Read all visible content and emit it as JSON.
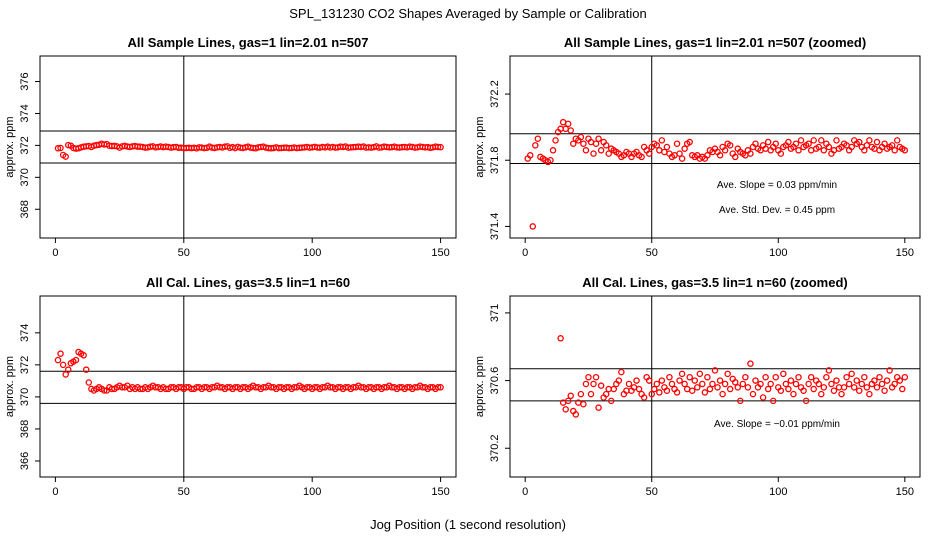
{
  "figure": {
    "title": "SPL_131230  CO2 Shapes Averaged by Sample or Calibration",
    "xlabel": "Jog Position (1 second resolution)"
  },
  "chart_data": [
    {
      "type": "scatter",
      "title": "All Sample Lines, gas=1 lin=2.01 n=507",
      "xlabel": "",
      "ylabel": "approx. ppm",
      "xlim": [
        -6,
        156
      ],
      "ylim": [
        366.2,
        377.6
      ],
      "xticks": [
        0,
        50,
        100,
        150
      ],
      "yticks": [
        368,
        370,
        372,
        374,
        376
      ],
      "hlines": [
        372.9,
        370.9
      ],
      "vline": 50,
      "point_color": "#ff0000",
      "annotations": [],
      "x": [
        1,
        2,
        3,
        4,
        5,
        6,
        7,
        8,
        9,
        10,
        11,
        12,
        13,
        14,
        15,
        16,
        17,
        18,
        19,
        20,
        21,
        22,
        23,
        24,
        25,
        26,
        27,
        28,
        29,
        30,
        31,
        32,
        33,
        34,
        35,
        36,
        37,
        38,
        39,
        40,
        41,
        42,
        43,
        44,
        45,
        46,
        47,
        48,
        49,
        50,
        51,
        52,
        53,
        54,
        55,
        56,
        57,
        58,
        59,
        60,
        61,
        62,
        63,
        64,
        65,
        66,
        67,
        68,
        69,
        70,
        71,
        72,
        73,
        74,
        75,
        76,
        77,
        78,
        79,
        80,
        81,
        82,
        83,
        84,
        85,
        86,
        87,
        88,
        89,
        90,
        91,
        92,
        93,
        94,
        95,
        96,
        97,
        98,
        99,
        100,
        101,
        102,
        103,
        104,
        105,
        106,
        107,
        108,
        109,
        110,
        111,
        112,
        113,
        114,
        115,
        116,
        117,
        118,
        119,
        120,
        121,
        122,
        123,
        124,
        125,
        126,
        127,
        128,
        129,
        130,
        131,
        132,
        133,
        134,
        135,
        136,
        137,
        138,
        139,
        140,
        141,
        142,
        143,
        144,
        145,
        146,
        147,
        148,
        149,
        150
      ],
      "y": [
        371.82,
        371.84,
        371.4,
        371.3,
        372.02,
        371.98,
        371.84,
        371.8,
        371.82,
        371.88,
        371.92,
        371.94,
        371.96,
        371.9,
        371.98,
        372.02,
        372.04,
        372.1,
        372.06,
        372.08,
        371.98,
        371.96,
        371.97,
        371.94,
        371.86,
        371.94,
        371.97,
        371.93,
        371.9,
        371.94,
        371.96,
        371.92,
        371.92,
        371.9,
        371.86,
        371.88,
        371.92,
        371.94,
        371.88,
        371.9,
        371.93,
        371.89,
        371.92,
        371.9,
        371.86,
        371.89,
        371.9,
        371.85,
        371.86,
        371.83,
        371.84,
        371.85,
        371.83,
        371.85,
        371.82,
        371.88,
        371.86,
        371.83,
        371.85,
        371.92,
        371.86,
        371.84,
        371.88,
        371.9,
        371.87,
        371.92,
        371.94,
        371.85,
        371.89,
        371.83,
        371.91,
        371.86,
        371.84,
        371.88,
        371.92,
        371.86,
        371.84,
        371.82,
        371.88,
        371.9,
        371.92,
        371.86,
        371.83,
        371.82,
        371.84,
        371.88,
        371.83,
        371.84,
        371.85,
        371.86,
        371.83,
        371.84,
        371.87,
        371.83,
        371.85,
        371.86,
        371.88,
        371.9,
        371.86,
        371.88,
        371.91,
        371.87,
        371.86,
        371.9,
        371.88,
        371.92,
        371.87,
        371.9,
        371.86,
        371.88,
        371.92,
        371.9,
        371.93,
        371.86,
        371.88,
        371.89,
        371.9,
        371.92,
        371.9,
        371.93,
        371.86,
        371.88,
        371.86,
        371.89,
        371.94,
        371.86,
        371.88,
        371.92,
        371.9,
        371.88,
        371.89,
        371.92,
        371.88,
        371.87,
        371.89,
        371.9,
        371.88,
        371.92,
        371.9,
        371.86,
        371.88,
        371.92,
        371.9,
        371.88,
        371.89,
        371.85,
        371.88,
        371.92,
        371.9,
        371.89
      ]
    },
    {
      "type": "scatter",
      "title": "All Sample Lines, gas=1 lin=2.01 n=507 (zoomed)",
      "xlabel": "",
      "ylabel": "approx. ppm",
      "xlim": [
        -6,
        156
      ],
      "ylim": [
        371.33,
        372.43
      ],
      "xticks": [
        0,
        50,
        100,
        150
      ],
      "yticks": [
        371.4,
        371.8,
        372.2
      ],
      "hlines": [
        371.96,
        371.78
      ],
      "vline": 50,
      "point_color": "#ff0000",
      "annotations": [
        "Ave. Slope =  0.03  ppm/min",
        "Ave. Std. Dev. =  0.45  ppm"
      ],
      "x": [
        1,
        2,
        3,
        4,
        5,
        6,
        7,
        8,
        9,
        10,
        11,
        12,
        13,
        14,
        15,
        16,
        17,
        18,
        19,
        20,
        21,
        22,
        23,
        24,
        25,
        26,
        27,
        28,
        29,
        30,
        31,
        32,
        33,
        34,
        35,
        36,
        37,
        38,
        39,
        40,
        41,
        42,
        43,
        44,
        45,
        46,
        47,
        48,
        49,
        50,
        51,
        52,
        53,
        54,
        55,
        56,
        57,
        58,
        59,
        60,
        61,
        62,
        63,
        64,
        65,
        66,
        67,
        68,
        69,
        70,
        71,
        72,
        73,
        74,
        75,
        76,
        77,
        78,
        79,
        80,
        81,
        82,
        83,
        84,
        85,
        86,
        87,
        88,
        89,
        90,
        91,
        92,
        93,
        94,
        95,
        96,
        97,
        98,
        99,
        100,
        101,
        102,
        103,
        104,
        105,
        106,
        107,
        108,
        109,
        110,
        111,
        112,
        113,
        114,
        115,
        116,
        117,
        118,
        119,
        120,
        121,
        122,
        123,
        124,
        125,
        126,
        127,
        128,
        129,
        130,
        131,
        132,
        133,
        134,
        135,
        136,
        137,
        138,
        139,
        140,
        141,
        142,
        143,
        144,
        145,
        146,
        147,
        148,
        149,
        150
      ],
      "y": [
        371.81,
        371.83,
        371.4,
        371.89,
        371.93,
        371.82,
        371.81,
        371.8,
        371.79,
        371.8,
        371.86,
        371.92,
        371.97,
        371.99,
        372.03,
        371.99,
        372.02,
        371.98,
        371.9,
        371.93,
        371.92,
        371.94,
        371.9,
        371.86,
        371.93,
        371.91,
        371.84,
        371.9,
        371.93,
        371.86,
        371.91,
        371.89,
        371.84,
        371.87,
        371.86,
        371.85,
        371.84,
        371.82,
        371.83,
        371.85,
        371.84,
        371.82,
        371.84,
        371.85,
        371.83,
        371.82,
        371.88,
        371.86,
        371.84,
        371.88,
        371.9,
        371.89,
        371.86,
        371.92,
        371.85,
        371.88,
        371.84,
        371.82,
        371.83,
        371.9,
        371.84,
        371.81,
        371.87,
        371.9,
        371.91,
        371.83,
        371.82,
        371.83,
        371.81,
        371.82,
        371.81,
        371.83,
        371.86,
        371.85,
        371.87,
        371.85,
        371.83,
        371.88,
        371.86,
        371.9,
        371.89,
        371.84,
        371.82,
        371.87,
        371.85,
        371.84,
        371.83,
        371.86,
        371.84,
        371.88,
        371.9,
        371.87,
        371.86,
        371.89,
        371.87,
        371.91,
        371.86,
        371.88,
        371.9,
        371.86,
        371.84,
        371.88,
        371.89,
        371.91,
        371.87,
        371.88,
        371.9,
        371.86,
        371.92,
        371.88,
        371.89,
        371.9,
        371.86,
        371.92,
        371.87,
        371.88,
        371.92,
        371.86,
        371.9,
        371.88,
        371.84,
        371.86,
        371.92,
        371.87,
        371.88,
        371.9,
        371.89,
        371.86,
        371.88,
        371.92,
        371.9,
        371.91,
        371.88,
        371.86,
        371.89,
        371.92,
        371.88,
        371.87,
        371.91,
        371.86,
        371.88,
        371.9,
        371.87,
        371.88,
        371.89,
        371.86,
        371.92,
        371.88,
        371.87,
        371.86
      ]
    },
    {
      "type": "scatter",
      "title": "All Cal. Lines, gas=3.5 lin=1 n=60",
      "xlabel": "",
      "ylabel": "approx. ppm",
      "xlim": [
        -6,
        156
      ],
      "ylim": [
        365.0,
        376.3
      ],
      "xticks": [
        0,
        50,
        100,
        150
      ],
      "yticks": [
        366,
        368,
        370,
        372,
        374
      ],
      "hlines": [
        371.6,
        369.6
      ],
      "vline": 50,
      "point_color": "#ff0000",
      "annotations": [],
      "x": [
        1,
        2,
        3,
        4,
        5,
        6,
        7,
        8,
        9,
        10,
        11,
        12,
        13,
        14,
        15,
        16,
        17,
        18,
        19,
        20,
        21,
        22,
        23,
        24,
        25,
        26,
        27,
        28,
        29,
        30,
        31,
        32,
        33,
        34,
        35,
        36,
        37,
        38,
        39,
        40,
        41,
        42,
        43,
        44,
        45,
        46,
        47,
        48,
        49,
        50,
        51,
        52,
        53,
        54,
        55,
        56,
        57,
        58,
        59,
        60,
        61,
        62,
        63,
        64,
        65,
        66,
        67,
        68,
        69,
        70,
        71,
        72,
        73,
        74,
        75,
        76,
        77,
        78,
        79,
        80,
        81,
        82,
        83,
        84,
        85,
        86,
        87,
        88,
        89,
        90,
        91,
        92,
        93,
        94,
        95,
        96,
        97,
        98,
        99,
        100,
        101,
        102,
        103,
        104,
        105,
        106,
        107,
        108,
        109,
        110,
        111,
        112,
        113,
        114,
        115,
        116,
        117,
        118,
        119,
        120,
        121,
        122,
        123,
        124,
        125,
        126,
        127,
        128,
        129,
        130,
        131,
        132,
        133,
        134,
        135,
        136,
        137,
        138,
        139,
        140,
        141,
        142,
        143,
        144,
        145,
        146,
        147,
        148,
        149,
        150
      ],
      "y": [
        372.3,
        372.7,
        372.0,
        371.4,
        371.7,
        372.1,
        372.2,
        372.3,
        372.8,
        372.7,
        372.6,
        371.7,
        370.9,
        370.5,
        370.4,
        370.5,
        370.6,
        370.5,
        370.4,
        370.4,
        370.6,
        370.5,
        370.5,
        370.6,
        370.7,
        370.6,
        370.6,
        370.7,
        370.5,
        370.6,
        370.5,
        370.6,
        370.5,
        370.5,
        370.6,
        370.5,
        370.6,
        370.7,
        370.6,
        370.6,
        370.5,
        370.6,
        370.5,
        370.5,
        370.6,
        370.6,
        370.5,
        370.6,
        370.6,
        370.5,
        370.6,
        370.6,
        370.5,
        370.5,
        370.6,
        370.6,
        370.5,
        370.6,
        370.6,
        370.5,
        370.6,
        370.6,
        370.7,
        370.6,
        370.6,
        370.5,
        370.6,
        370.6,
        370.5,
        370.6,
        370.6,
        370.5,
        370.6,
        370.6,
        370.5,
        370.6,
        370.7,
        370.6,
        370.6,
        370.5,
        370.6,
        370.6,
        370.7,
        370.6,
        370.6,
        370.5,
        370.6,
        370.6,
        370.5,
        370.6,
        370.6,
        370.5,
        370.6,
        370.6,
        370.7,
        370.6,
        370.5,
        370.6,
        370.6,
        370.5,
        370.6,
        370.6,
        370.5,
        370.6,
        370.6,
        370.7,
        370.6,
        370.6,
        370.5,
        370.6,
        370.6,
        370.5,
        370.6,
        370.6,
        370.5,
        370.6,
        370.6,
        370.7,
        370.6,
        370.6,
        370.5,
        370.6,
        370.6,
        370.5,
        370.6,
        370.6,
        370.5,
        370.6,
        370.6,
        370.7,
        370.6,
        370.6,
        370.5,
        370.6,
        370.6,
        370.5,
        370.6,
        370.6,
        370.5,
        370.6,
        370.6,
        370.7,
        370.6,
        370.6,
        370.5,
        370.6,
        370.6,
        370.5,
        370.6,
        370.6
      ]
    },
    {
      "type": "scatter",
      "title": "All Cal. Lines, gas=3.5 lin=1 n=60 (zoomed)",
      "xlabel": "",
      "ylabel": "approx. ppm",
      "xlim": [
        -6,
        156
      ],
      "ylim": [
        370.03,
        371.1
      ],
      "xticks": [
        0,
        50,
        100,
        150
      ],
      "yticks": [
        370.2,
        370.6,
        371.0
      ],
      "hlines": [
        370.67,
        370.48
      ],
      "vline": 50,
      "point_color": "#ff0000",
      "annotations": [
        "Ave. Slope =  −0.01  ppm/min"
      ],
      "x": [
        14,
        15,
        16,
        17,
        18,
        19,
        20,
        21,
        22,
        23,
        24,
        25,
        26,
        27,
        28,
        29,
        30,
        31,
        32,
        33,
        34,
        35,
        36,
        37,
        38,
        39,
        40,
        41,
        42,
        43,
        44,
        45,
        46,
        47,
        48,
        49,
        50,
        51,
        52,
        53,
        54,
        55,
        56,
        57,
        58,
        59,
        60,
        61,
        62,
        63,
        64,
        65,
        66,
        67,
        68,
        69,
        70,
        71,
        72,
        73,
        74,
        75,
        76,
        77,
        78,
        79,
        80,
        81,
        82,
        83,
        84,
        85,
        86,
        87,
        88,
        89,
        90,
        91,
        92,
        93,
        94,
        95,
        96,
        97,
        98,
        99,
        100,
        101,
        102,
        103,
        104,
        105,
        106,
        107,
        108,
        109,
        110,
        111,
        112,
        113,
        114,
        115,
        116,
        117,
        118,
        119,
        120,
        121,
        122,
        123,
        124,
        125,
        126,
        127,
        128,
        129,
        130,
        131,
        132,
        133,
        134,
        135,
        136,
        137,
        138,
        139,
        140,
        141,
        142,
        143,
        144,
        145,
        146,
        147,
        148,
        149,
        150
      ],
      "y": [
        370.85,
        370.47,
        370.43,
        370.48,
        370.51,
        370.42,
        370.4,
        370.47,
        370.52,
        370.46,
        370.58,
        370.62,
        370.52,
        370.58,
        370.62,
        370.44,
        370.57,
        370.5,
        370.52,
        370.55,
        370.48,
        370.55,
        370.58,
        370.6,
        370.65,
        370.52,
        370.54,
        370.58,
        370.54,
        370.56,
        370.6,
        370.55,
        370.52,
        370.5,
        370.62,
        370.6,
        370.52,
        370.55,
        370.58,
        370.53,
        370.6,
        370.56,
        370.54,
        370.62,
        370.58,
        370.55,
        370.53,
        370.6,
        370.64,
        370.58,
        370.55,
        370.62,
        370.54,
        370.6,
        370.56,
        370.64,
        370.58,
        370.53,
        370.62,
        370.55,
        370.58,
        370.66,
        370.56,
        370.6,
        370.52,
        370.58,
        370.64,
        370.55,
        370.61,
        370.59,
        370.56,
        370.48,
        370.58,
        370.62,
        370.56,
        370.7,
        370.52,
        370.6,
        370.56,
        370.58,
        370.5,
        370.62,
        370.55,
        370.58,
        370.48,
        370.62,
        370.56,
        370.54,
        370.64,
        370.58,
        370.55,
        370.6,
        370.52,
        370.58,
        370.62,
        370.56,
        370.54,
        370.48,
        370.58,
        370.62,
        370.55,
        370.6,
        370.58,
        370.52,
        370.56,
        370.62,
        370.66,
        370.58,
        370.54,
        370.6,
        370.56,
        370.52,
        370.56,
        370.62,
        370.58,
        370.64,
        370.56,
        370.6,
        370.54,
        370.58,
        370.62,
        370.56,
        370.52,
        370.58,
        370.6,
        370.56,
        370.62,
        370.58,
        370.54,
        370.6,
        370.66,
        370.56,
        370.58,
        370.62,
        370.6,
        370.55,
        370.62
      ]
    }
  ]
}
